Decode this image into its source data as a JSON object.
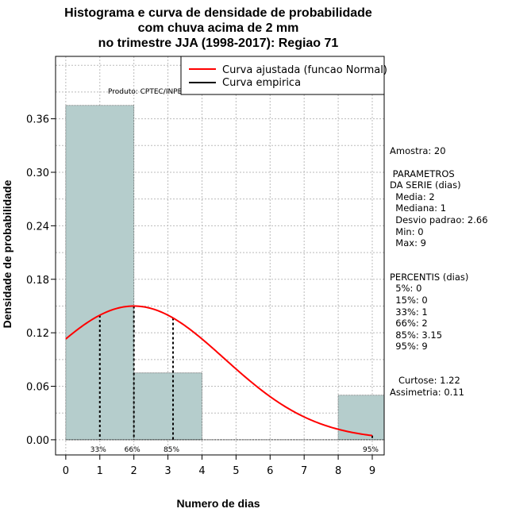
{
  "chart_data": {
    "type": "bar",
    "title_lines": [
      "Histograma e curva de densidade de probabilidade",
      "com chuva acima de 2 mm",
      "no trimestre JJA (1998-2017): Regiao 71"
    ],
    "xlabel": "Numero de dias",
    "ylabel": "Densidade de probabilidade",
    "xlim": [
      -0.3,
      9.35
    ],
    "ylim": [
      -0.017,
      0.43
    ],
    "xticks": [
      0,
      1,
      2,
      3,
      4,
      5,
      6,
      7,
      8,
      9
    ],
    "yticks": [
      0.0,
      0.06,
      0.12,
      0.18,
      0.24,
      0.3,
      0.36
    ],
    "ytick_labels": [
      "0.00",
      "0.06",
      "0.12",
      "0.18",
      "0.24",
      "0.30",
      "0.36"
    ],
    "bins": [
      {
        "start": 0,
        "end": 2,
        "density": 0.375
      },
      {
        "start": 2,
        "end": 4,
        "density": 0.075
      },
      {
        "start": 4,
        "end": 6,
        "density": 0.0
      },
      {
        "start": 6,
        "end": 8,
        "density": 0.0
      },
      {
        "start": 8,
        "end": 9.35,
        "density": 0.05
      }
    ],
    "normal_curve": {
      "mean": 2,
      "sd": 2.66,
      "x_range": [
        0,
        9
      ]
    },
    "percentile_lines": [
      {
        "label": "33%",
        "x": 1
      },
      {
        "label": "66%",
        "x": 2
      },
      {
        "label": "85%",
        "x": 3.15
      },
      {
        "label": "95%",
        "x": 9
      }
    ],
    "legend": {
      "position": "top-right",
      "entries": [
        {
          "label": "Curva ajustada (funcao Normal)",
          "color": "#ff0000"
        },
        {
          "label": "Curva empirica",
          "color": "#000000"
        }
      ]
    },
    "source_note": "Produto: CPTEC/INPE",
    "colors": {
      "bar_fill": "#b5cdcc",
      "curve": "#ff0000",
      "grid": "#bbbbbb"
    }
  },
  "side_panel": {
    "sample": "Amostra: 20",
    "params_title_1": " PARAMETROS",
    "params_title_2": "DA SERIE (dias)",
    "media": "  Media: 2",
    "mediana": "  Mediana: 1",
    "desvio": "  Desvio padrao: 2.66",
    "min": "  Min: 0",
    "max": "  Max: 9",
    "perc_title": "PERCENTIS (dias)",
    "p5": "  5%: 0",
    "p15": "  15%: 0",
    "p33": "  33%: 1",
    "p66": "  66%: 2",
    "p85": "  85%: 3.15",
    "p95": "  95%: 9",
    "curtose": "   Curtose: 1.22",
    "assimetria": "Assimetria: 0.11"
  }
}
